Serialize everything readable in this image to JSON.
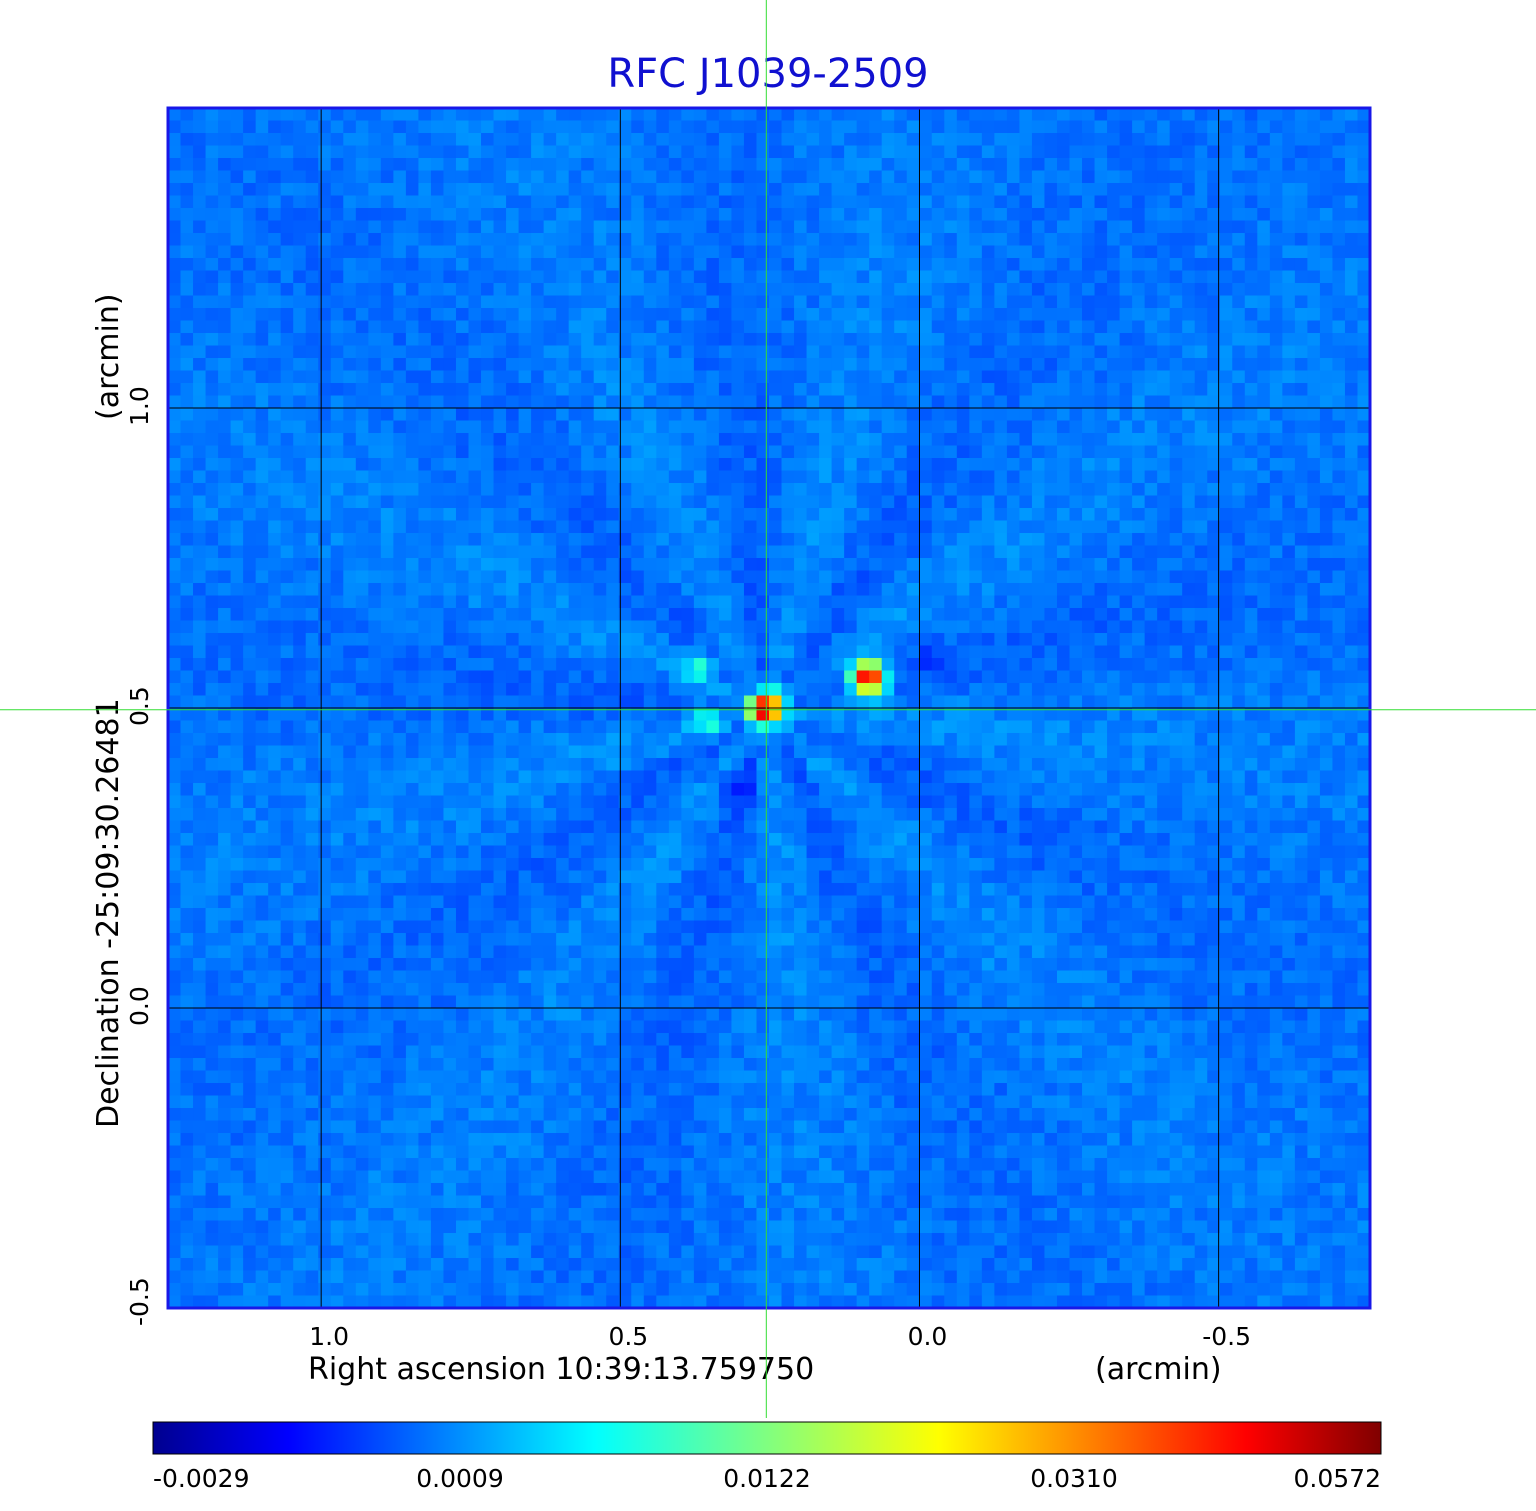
{
  "chart_data": {
    "type": "heatmap",
    "title": "RFC J1039-2509",
    "xlabel": "Right ascension  10:39:13.759750",
    "xunit": "(arcmin)",
    "ylabel": "Declination  -25:09:30.26481",
    "yunit": "(arcmin)",
    "x_ticks": [
      "1.0",
      "0.5",
      "0.0",
      "-0.5"
    ],
    "x_tick_values": [
      1.0,
      0.5,
      0.0,
      -0.5
    ],
    "y_ticks": [
      "1.0",
      "0.5",
      "0.0",
      "-0.5"
    ],
    "y_tick_values": [
      1.0,
      0.5,
      0.0,
      -0.5
    ],
    "xlim": [
      1.256,
      -0.753
    ],
    "ylim": [
      -0.5,
      1.5
    ],
    "grid": true,
    "crosshair": {
      "x": 0.256,
      "y": 0.497
    },
    "colorbar": {
      "tick_labels": [
        "-0.0029",
        "0.0009",
        "0.0122",
        "0.0310",
        "0.0572"
      ],
      "colormap": "jet"
    },
    "sources": [
      {
        "x": 0.256,
        "y": 0.499,
        "peak": 0.0572
      },
      {
        "x": 0.085,
        "y": 0.55,
        "peak": 0.045
      },
      {
        "x": 0.37,
        "y": 0.571,
        "peak": 0.011
      },
      {
        "x": 0.355,
        "y": 0.481,
        "peak": 0.009
      }
    ],
    "background_level": 0.0009
  },
  "colors": {
    "title": "#1010d0",
    "frame": "#1818e8",
    "grid": "#000000",
    "crosshair": "#33dd33"
  }
}
